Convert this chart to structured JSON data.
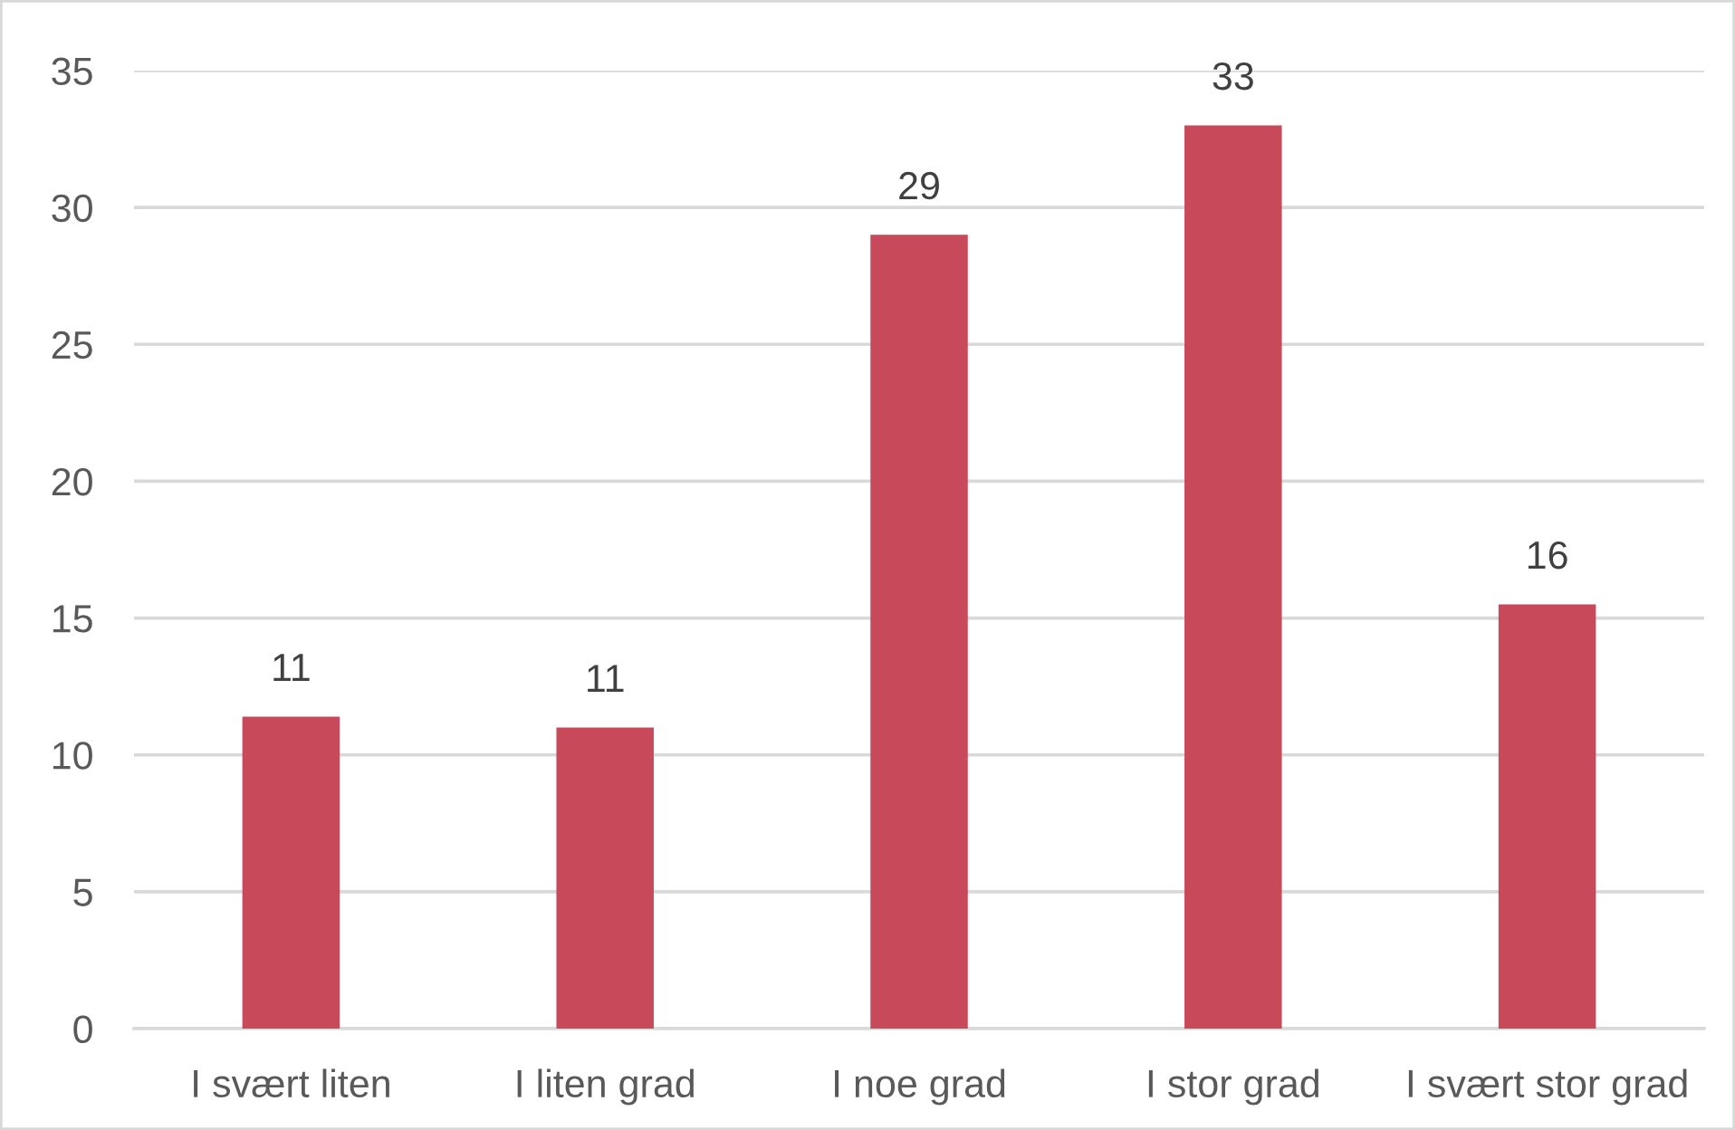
{
  "chart_data": {
    "type": "bar",
    "categories": [
      "I svært liten",
      "I liten grad",
      "I noe grad",
      "I stor grad",
      "I svært stor grad"
    ],
    "values": [
      11.4,
      11.0,
      29.0,
      33.0,
      15.5
    ],
    "value_labels": [
      "11",
      "11",
      "29",
      "33",
      "16"
    ],
    "color": "#c84a5a",
    "ylim": [
      0,
      35
    ],
    "yticks": [
      0,
      5,
      10,
      15,
      20,
      25,
      30,
      35
    ],
    "grid": "y"
  }
}
